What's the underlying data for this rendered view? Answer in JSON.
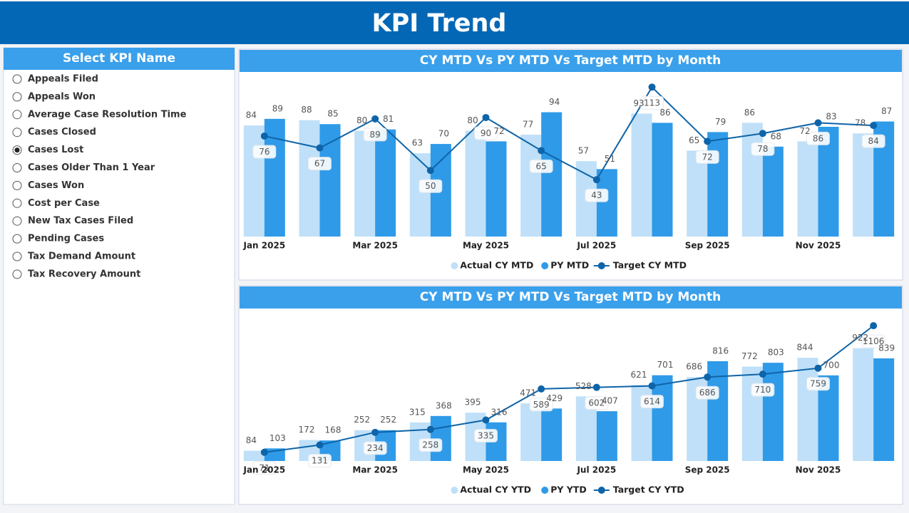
{
  "header": {
    "title": "KPI Trend"
  },
  "slicer": {
    "title": "Select KPI Name",
    "items": [
      "Appeals Filed",
      "Appeals Won",
      "Average Case Resolution Time",
      "Cases Closed",
      "Cases Lost",
      "Cases Older Than 1 Year",
      "Cases Won",
      "Cost per Case",
      "New Tax Cases Filed",
      "Pending Cases",
      "Tax Demand Amount",
      "Tax Recovery Amount"
    ],
    "selected": "Cases Lost"
  },
  "chart_data": [
    {
      "type": "combo",
      "title": "CY MTD Vs PY MTD Vs Target MTD by Month",
      "categories": [
        "Jan 2025",
        null,
        "Mar 2025",
        null,
        "May 2025",
        null,
        "Jul 2025",
        null,
        "Sep 2025",
        null,
        "Nov 2025",
        null
      ],
      "ylim": [
        0,
        125
      ],
      "series": [
        {
          "name": "Actual CY MTD",
          "kind": "bar",
          "color": "#bfe0f8",
          "values": [
            84,
            88,
            80,
            63,
            80,
            77,
            57,
            93,
            65,
            86,
            72,
            78
          ]
        },
        {
          "name": "PY MTD",
          "kind": "bar",
          "color": "#2f9ae8",
          "values": [
            89,
            85,
            81,
            70,
            72,
            94,
            51,
            86,
            79,
            68,
            83,
            87
          ]
        },
        {
          "name": "Target CY MTD",
          "kind": "line",
          "color": "#0e64a8",
          "values": [
            76,
            67,
            89,
            50,
            90,
            65,
            43,
            113,
            72,
            78,
            86,
            84
          ]
        }
      ]
    },
    {
      "type": "combo",
      "title": "CY MTD Vs PY MTD Vs Target MTD by Month",
      "categories": [
        "Jan 2025",
        null,
        "Mar 2025",
        null,
        "May 2025",
        null,
        "Jul 2025",
        null,
        "Sep 2025",
        null,
        "Nov 2025",
        null
      ],
      "ylim": [
        0,
        1200
      ],
      "series": [
        {
          "name": "Actual CY YTD",
          "kind": "bar",
          "color": "#bfe0f8",
          "values": [
            84,
            172,
            252,
            315,
            395,
            471,
            528,
            621,
            686,
            772,
            844,
            922
          ]
        },
        {
          "name": "PY YTD",
          "kind": "bar",
          "color": "#2f9ae8",
          "values": [
            103,
            168,
            252,
            368,
            316,
            429,
            407,
            701,
            816,
            803,
            700,
            839
          ]
        },
        {
          "name": "Target CY YTD",
          "kind": "line",
          "color": "#0e64a8",
          "values": [
            71,
            131,
            234,
            258,
            335,
            589,
            602,
            614,
            686,
            710,
            759,
            1106
          ]
        }
      ]
    }
  ]
}
